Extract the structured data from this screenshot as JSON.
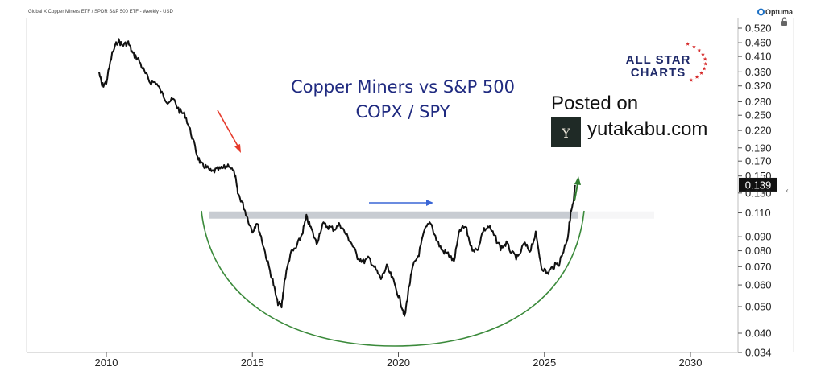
{
  "header": {
    "instrument": "Global X Copper Miners ETF / SPDR S&P 500 ETF - Weekly - USD",
    "vendor": "Optuma"
  },
  "annotations": {
    "title_line1": "Copper Miners vs S&P 500",
    "title_line2": "COPX / SPY",
    "posted_on": "Posted on",
    "site": "yutakabu.com",
    "brand_line1": "ALL STAR",
    "brand_line2": "CHARTS",
    "current_value": "0.139"
  },
  "colors": {
    "line": "#111111",
    "title": "#1f2a80",
    "red_arrow": "#e53a2b",
    "blue_arrow": "#3a66d6",
    "green": "#3b8a3b",
    "resistance_band": "#c8ccd2",
    "price_label_bg": "#111111"
  },
  "chart_data": {
    "type": "line",
    "title": "Copper Miners vs S&P 500",
    "subtitle": "COPX / SPY",
    "scale": "log",
    "ylim": [
      0.034,
      0.56
    ],
    "xlim": [
      2009.0,
      2032.2
    ],
    "y_ticks": [
      "0.520",
      "0.460",
      "0.410",
      "0.360",
      "0.320",
      "0.280",
      "0.250",
      "0.220",
      "0.190",
      "0.170",
      "0.150",
      "0.130",
      "0.110",
      "0.090",
      "0.080",
      "0.070",
      "0.060",
      "0.050",
      "0.040",
      "0.034"
    ],
    "x_ticks": [
      "2010",
      "2015",
      "2020",
      "2025",
      "2030"
    ],
    "resistance_level": 0.108,
    "last_value": 0.139,
    "series": [
      {
        "x": [
          2009.75,
          2009.85,
          2010.0,
          2010.2,
          2010.4,
          2010.55,
          2010.75,
          2010.9,
          2011.1,
          2011.3,
          2011.5,
          2011.7,
          2011.9,
          2012.1,
          2012.3,
          2012.5,
          2012.7,
          2012.9,
          2013.1,
          2013.25,
          2013.4,
          2013.6,
          2013.8,
          2014.0,
          2014.2,
          2014.4,
          2014.5,
          2014.65,
          2014.8,
          2015.0,
          2015.15,
          2015.3,
          2015.5,
          2015.7,
          2015.85,
          2016.0,
          2016.1,
          2016.3,
          2016.5,
          2016.7,
          2016.85,
          2017.0,
          2017.2,
          2017.4,
          2017.6,
          2017.8,
          2018.0,
          2018.2,
          2018.4,
          2018.6,
          2018.8,
          2019.0,
          2019.2,
          2019.4,
          2019.6,
          2019.8,
          2020.0,
          2020.15,
          2020.22,
          2020.35,
          2020.5,
          2020.7,
          2020.9,
          2021.1,
          2021.3,
          2021.5,
          2021.7,
          2021.9,
          2022.1,
          2022.3,
          2022.5,
          2022.7,
          2022.9,
          2023.1,
          2023.3,
          2023.5,
          2023.7,
          2023.9,
          2024.1,
          2024.3,
          2024.5,
          2024.7,
          2024.9,
          2025.1,
          2025.3,
          2025.5,
          2025.65,
          2025.8,
          2025.9,
          2026.0,
          2026.05
        ],
        "y": [
          0.36,
          0.32,
          0.33,
          0.42,
          0.47,
          0.45,
          0.46,
          0.42,
          0.4,
          0.36,
          0.33,
          0.33,
          0.3,
          0.28,
          0.285,
          0.26,
          0.25,
          0.215,
          0.18,
          0.165,
          0.162,
          0.155,
          0.158,
          0.16,
          0.165,
          0.152,
          0.13,
          0.12,
          0.108,
          0.094,
          0.102,
          0.09,
          0.074,
          0.062,
          0.052,
          0.05,
          0.062,
          0.078,
          0.082,
          0.092,
          0.106,
          0.097,
          0.085,
          0.1,
          0.098,
          0.096,
          0.1,
          0.092,
          0.085,
          0.076,
          0.073,
          0.075,
          0.069,
          0.063,
          0.07,
          0.063,
          0.055,
          0.049,
          0.046,
          0.058,
          0.07,
          0.078,
          0.095,
          0.102,
          0.088,
          0.08,
          0.078,
          0.073,
          0.095,
          0.098,
          0.082,
          0.08,
          0.095,
          0.098,
          0.09,
          0.082,
          0.085,
          0.078,
          0.075,
          0.085,
          0.08,
          0.092,
          0.07,
          0.066,
          0.07,
          0.072,
          0.08,
          0.09,
          0.11,
          0.12,
          0.139
        ]
      }
    ],
    "xlabel": "",
    "ylabel": ""
  }
}
